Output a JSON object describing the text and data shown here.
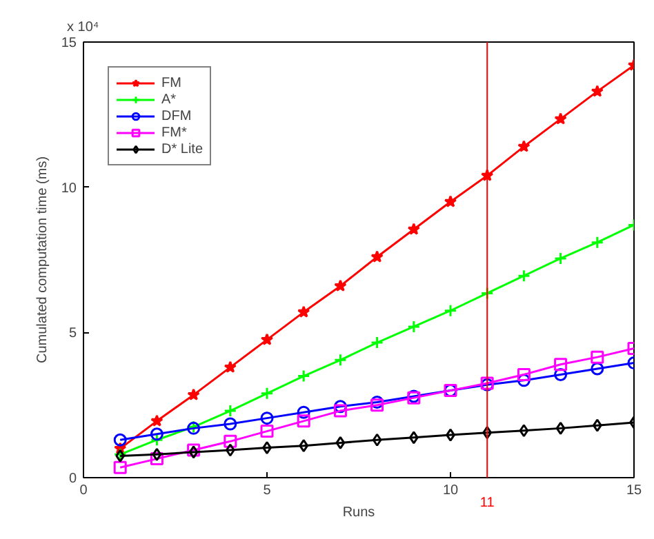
{
  "chart_data": {
    "type": "line",
    "xlabel": "Runs",
    "ylabel": "Cumulated computation time (ms)",
    "annotations": [
      "x 10⁴"
    ],
    "x": [
      1,
      2,
      3,
      4,
      5,
      6,
      7,
      8,
      9,
      10,
      11,
      12,
      13,
      14,
      15
    ],
    "series": [
      {
        "name": "FM",
        "color": "#ff0000",
        "marker": "star",
        "values": [
          1.0,
          1.95,
          2.85,
          3.8,
          4.75,
          5.7,
          6.6,
          7.6,
          8.55,
          9.5,
          10.4,
          11.4,
          12.35,
          13.3,
          14.2
        ]
      },
      {
        "name": "A*",
        "color": "#00ff00",
        "marker": "cross",
        "values": [
          0.8,
          1.3,
          1.75,
          2.3,
          2.9,
          3.5,
          4.05,
          4.65,
          5.2,
          5.75,
          6.35,
          6.95,
          7.55,
          8.1,
          8.7
        ]
      },
      {
        "name": "DFM",
        "color": "#0000ff",
        "marker": "circle",
        "values": [
          1.3,
          1.5,
          1.7,
          1.85,
          2.05,
          2.25,
          2.45,
          2.6,
          2.8,
          3.0,
          3.2,
          3.35,
          3.55,
          3.75,
          3.95
        ]
      },
      {
        "name": "FM*",
        "color": "#ff00ff",
        "marker": "square",
        "values": [
          0.35,
          0.65,
          0.95,
          1.25,
          1.6,
          1.95,
          2.3,
          2.5,
          2.75,
          3.0,
          3.25,
          3.55,
          3.9,
          4.15,
          4.45
        ]
      },
      {
        "name": "D* Lite",
        "color": "#000000",
        "marker": "diamond",
        "values": [
          0.75,
          0.8,
          0.88,
          0.95,
          1.03,
          1.1,
          1.2,
          1.3,
          1.38,
          1.47,
          1.55,
          1.62,
          1.7,
          1.8,
          1.9
        ]
      }
    ],
    "xlim": [
      0,
      15
    ],
    "xticks": [
      0,
      5,
      10,
      15
    ],
    "ylim": [
      0,
      15
    ],
    "yticks": [
      0,
      5,
      10,
      15
    ],
    "ref_lines": [
      {
        "axis": "x",
        "value": 11,
        "label": "11",
        "color": "#ff0000"
      }
    ],
    "legend": "top left",
    "grid": false
  }
}
